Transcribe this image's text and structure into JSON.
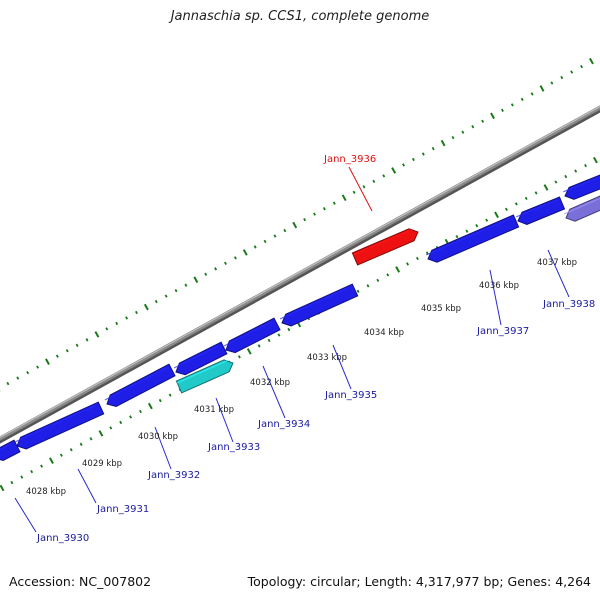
{
  "title": "Jannaschia sp. CCS1, complete genome",
  "footer": {
    "accession": "Accession: NC_007802",
    "summary": "Topology: circular; Length: 4,317,977 bp; Genes: 4,264"
  },
  "colors": {
    "backbone": "#8a8a8a",
    "ticks": "#1a7a1a",
    "gene_default": "#1e1ee6",
    "gene_highlight": "#ee1111",
    "gene_cyan": "#22c9c9",
    "gene_purple": "#7a6fd9",
    "label_default": "#1a1aa0",
    "label_highlight": "#dd1111"
  },
  "scale_labels": [
    "4028 kbp",
    "4029 kbp",
    "4030 kbp",
    "4031 kbp",
    "4032 kbp",
    "4033 kbp",
    "4034 kbp",
    "4035 kbp",
    "4036 kbp",
    "4037 kbp"
  ],
  "gene_labels": [
    {
      "name": "Jann_3930",
      "highlight": false
    },
    {
      "name": "Jann_3931",
      "highlight": false
    },
    {
      "name": "Jann_3932",
      "highlight": false
    },
    {
      "name": "Jann_3933",
      "highlight": false
    },
    {
      "name": "Jann_3934",
      "highlight": false
    },
    {
      "name": "Jann_3935",
      "highlight": false
    },
    {
      "name": "Jann_3936",
      "highlight": true
    },
    {
      "name": "Jann_3937",
      "highlight": false
    },
    {
      "name": "Jann_3938",
      "highlight": false
    }
  ]
}
